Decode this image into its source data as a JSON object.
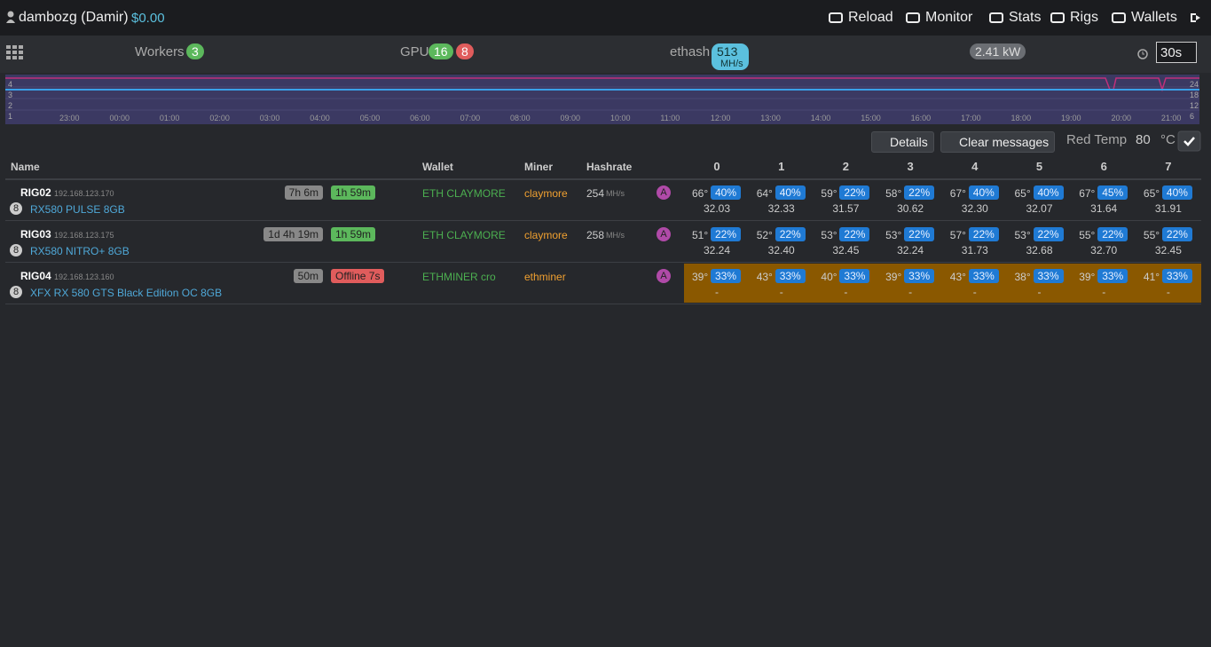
{
  "header": {
    "user": "dambozg (Damir)",
    "balance": "$0.00",
    "nav": [
      "Reload",
      "Monitor",
      "Stats",
      "Rigs",
      "Wallets"
    ]
  },
  "summary": {
    "workers_label": "Workers",
    "workers": "3",
    "gpu_label": "GPU",
    "gpu_ok": "16",
    "gpu_bad": "8",
    "algo": "ethash",
    "hashrate": "513",
    "hashrate_unit": "MH/s",
    "power": "2.41 kW",
    "interval": "30s"
  },
  "chart": {
    "left_axis": [
      "4",
      "3",
      "2",
      "1"
    ],
    "right_axis": [
      "24",
      "18",
      "12",
      "6"
    ],
    "times": [
      "23:00",
      "00:00",
      "01:00",
      "02:00",
      "03:00",
      "04:00",
      "05:00",
      "06:00",
      "07:00",
      "08:00",
      "09:00",
      "10:00",
      "11:00",
      "12:00",
      "13:00",
      "14:00",
      "15:00",
      "16:00",
      "17:00",
      "18:00",
      "19:00",
      "20:00",
      "21:00"
    ]
  },
  "toolbar": {
    "details": "Details",
    "clear": "Clear messages",
    "red_temp_label": "Red Temp",
    "red_temp": "80",
    "unit": "°C"
  },
  "table": {
    "columns": [
      "Name",
      "Wallet",
      "Miner",
      "Hashrate"
    ],
    "gpu_columns": [
      "0",
      "1",
      "2",
      "3",
      "4",
      "5",
      "6",
      "7"
    ],
    "rows": [
      {
        "name": "RIG02",
        "ip": "192.168.123.170",
        "uptime": "7h 6m",
        "session": "1h 59m",
        "session_color": "#5cb85c",
        "gpu_count": "8",
        "model": "RX580 PULSE 8GB",
        "wallet": "ETH CLAYMORE",
        "miner": "claymore",
        "hashrate": "254",
        "unit": "MH/s",
        "algo_badge": "A",
        "gpus": [
          {
            "temp": "66°",
            "fan": "40%",
            "hash": "32.03"
          },
          {
            "temp": "64°",
            "fan": "40%",
            "hash": "32.33"
          },
          {
            "temp": "59°",
            "fan": "22%",
            "hash": "31.57"
          },
          {
            "temp": "58°",
            "fan": "22%",
            "hash": "30.62"
          },
          {
            "temp": "67°",
            "fan": "40%",
            "hash": "32.30"
          },
          {
            "temp": "65°",
            "fan": "40%",
            "hash": "32.07"
          },
          {
            "temp": "67°",
            "fan": "45%",
            "hash": "31.64"
          },
          {
            "temp": "65°",
            "fan": "40%",
            "hash": "31.91"
          }
        ]
      },
      {
        "name": "RIG03",
        "ip": "192.168.123.175",
        "uptime": "1d 4h 19m",
        "session": "1h 59m",
        "session_color": "#5cb85c",
        "gpu_count": "8",
        "model": "RX580 NITRO+ 8GB",
        "wallet": "ETH CLAYMORE",
        "miner": "claymore",
        "hashrate": "258",
        "unit": "MH/s",
        "algo_badge": "A",
        "gpus": [
          {
            "temp": "51°",
            "fan": "22%",
            "hash": "32.24"
          },
          {
            "temp": "52°",
            "fan": "22%",
            "hash": "32.40"
          },
          {
            "temp": "53°",
            "fan": "22%",
            "hash": "32.45"
          },
          {
            "temp": "53°",
            "fan": "22%",
            "hash": "32.24"
          },
          {
            "temp": "57°",
            "fan": "22%",
            "hash": "31.73"
          },
          {
            "temp": "53°",
            "fan": "22%",
            "hash": "32.68"
          },
          {
            "temp": "55°",
            "fan": "22%",
            "hash": "32.70"
          },
          {
            "temp": "55°",
            "fan": "22%",
            "hash": "32.45"
          }
        ]
      },
      {
        "name": "RIG04",
        "ip": "192.168.123.160",
        "uptime": "50m",
        "session": "Offline 7s",
        "session_color": "#e05c5c",
        "gpu_count": "8",
        "model": "XFX RX 580 GTS Black Edition OC 8GB",
        "wallet": "ETHMINER cro",
        "miner": "ethminer",
        "algo_badge": "A",
        "gpu_bg": "#8a5800",
        "gpus": [
          {
            "temp": "39°",
            "fan": "33%",
            "hash": "-"
          },
          {
            "temp": "43°",
            "fan": "33%",
            "hash": "-"
          },
          {
            "temp": "40°",
            "fan": "33%",
            "hash": "-"
          },
          {
            "temp": "39°",
            "fan": "33%",
            "hash": "-"
          },
          {
            "temp": "43°",
            "fan": "33%",
            "hash": "-"
          },
          {
            "temp": "38°",
            "fan": "33%",
            "hash": "-"
          },
          {
            "temp": "39°",
            "fan": "33%",
            "hash": "-"
          },
          {
            "temp": "41°",
            "fan": "33%",
            "hash": "-"
          }
        ]
      }
    ]
  }
}
